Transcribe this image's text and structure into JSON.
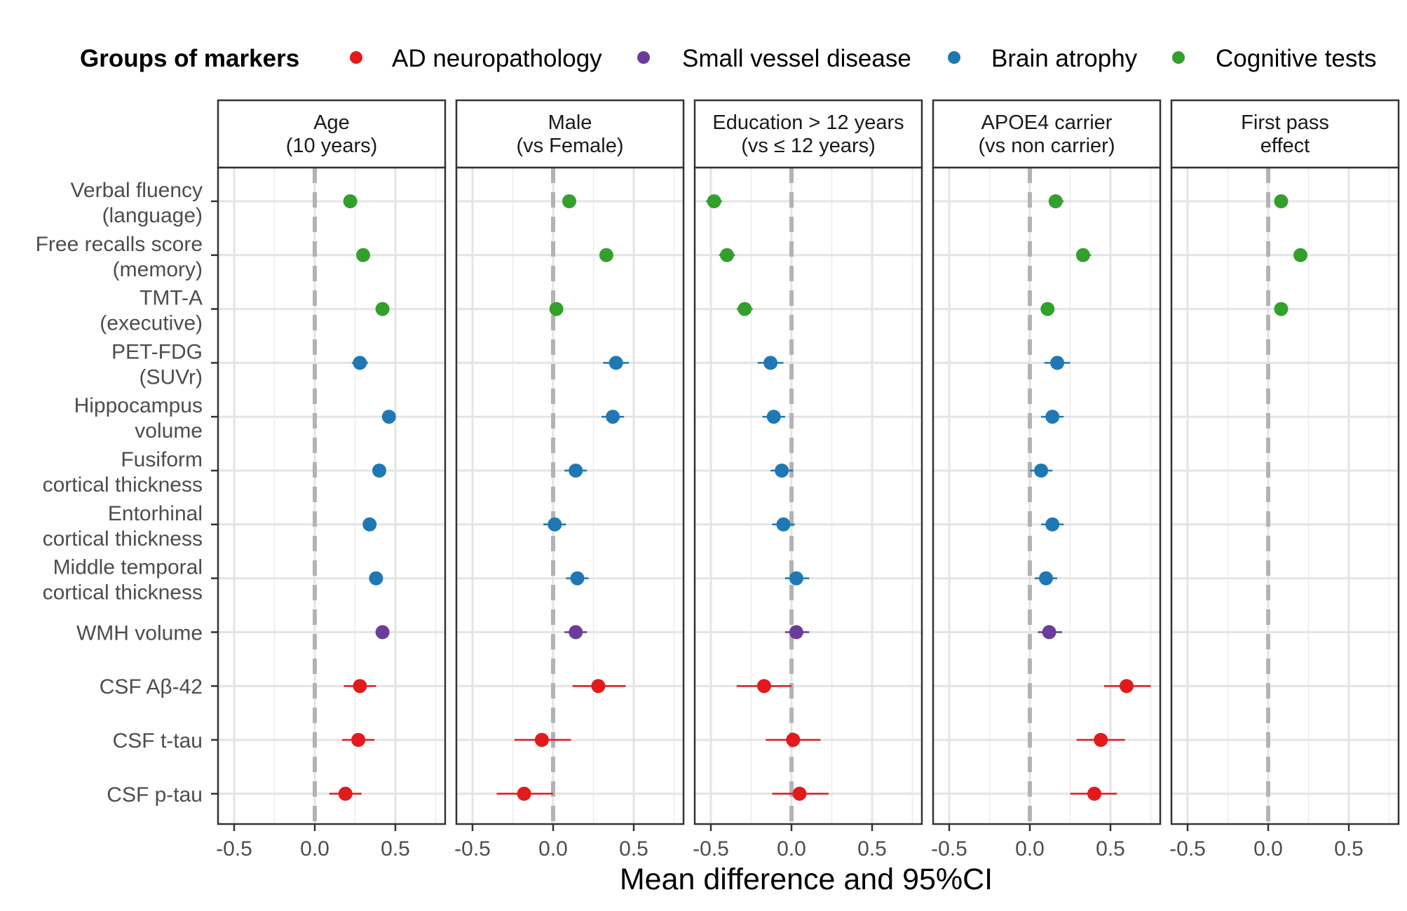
{
  "chart_data": {
    "type": "scatter",
    "subtype": "forest-plot-faceted",
    "legend": {
      "title": "Groups of markers",
      "placement": "top",
      "entries": [
        {
          "key": "ad",
          "label": "AD neuropathology",
          "color": "#E31A1C"
        },
        {
          "key": "svd",
          "label": "Small vessel disease",
          "color": "#6A3D9A"
        },
        {
          "key": "atrophy",
          "label": "Brain atrophy",
          "color": "#1F78B4"
        },
        {
          "key": "cog",
          "label": "Cognitive tests",
          "color": "#33A02C"
        }
      ]
    },
    "xlabel": "Mean difference and 95%CI",
    "xlim": [
      -0.6,
      0.8
    ],
    "xticks": [
      -0.5,
      0.0,
      0.5
    ],
    "xtick_labels": [
      "-0.5",
      "0.0",
      "0.5"
    ],
    "reference_line": 0,
    "markers": [
      {
        "lines": [
          "Verbal fluency",
          "(language)"
        ],
        "group": "cog"
      },
      {
        "lines": [
          "Free recalls score",
          "(memory)"
        ],
        "group": "cog"
      },
      {
        "lines": [
          "TMT-A",
          "(executive)"
        ],
        "group": "cog"
      },
      {
        "lines": [
          "PET-FDG",
          "(SUVr)"
        ],
        "group": "atrophy"
      },
      {
        "lines": [
          "Hippocampus",
          "volume"
        ],
        "group": "atrophy"
      },
      {
        "lines": [
          "Fusiform",
          "cortical thickness"
        ],
        "group": "atrophy"
      },
      {
        "lines": [
          "Entorhinal",
          "cortical thickness"
        ],
        "group": "atrophy"
      },
      {
        "lines": [
          "Middle temporal",
          "cortical thickness"
        ],
        "group": "atrophy"
      },
      {
        "lines": [
          "WMH volume"
        ],
        "group": "svd"
      },
      {
        "lines": [
          "CSF Aβ-42"
        ],
        "group": "ad"
      },
      {
        "lines": [
          "CSF t-tau"
        ],
        "group": "ad"
      },
      {
        "lines": [
          "CSF p-tau"
        ],
        "group": "ad"
      }
    ],
    "facets": [
      {
        "title": [
          "Age",
          "(10 years)"
        ],
        "estimates": [
          {
            "est": 0.22,
            "lo": 0.19,
            "hi": 0.25
          },
          {
            "est": 0.3,
            "lo": 0.27,
            "hi": 0.33
          },
          {
            "est": 0.42,
            "lo": 0.39,
            "hi": 0.45
          },
          {
            "est": 0.28,
            "lo": 0.23,
            "hi": 0.33
          },
          {
            "est": 0.46,
            "lo": 0.43,
            "hi": 0.49
          },
          {
            "est": 0.4,
            "lo": 0.37,
            "hi": 0.43
          },
          {
            "est": 0.34,
            "lo": 0.31,
            "hi": 0.37
          },
          {
            "est": 0.38,
            "lo": 0.35,
            "hi": 0.41
          },
          {
            "est": 0.42,
            "lo": 0.39,
            "hi": 0.45
          },
          {
            "est": 0.28,
            "lo": 0.18,
            "hi": 0.38
          },
          {
            "est": 0.27,
            "lo": 0.17,
            "hi": 0.37
          },
          {
            "est": 0.19,
            "lo": 0.09,
            "hi": 0.29
          }
        ]
      },
      {
        "title": [
          "Male",
          "(vs Female)"
        ],
        "estimates": [
          {
            "est": 0.1,
            "lo": 0.06,
            "hi": 0.14
          },
          {
            "est": 0.33,
            "lo": 0.29,
            "hi": 0.37
          },
          {
            "est": 0.02,
            "lo": -0.02,
            "hi": 0.06
          },
          {
            "est": 0.39,
            "lo": 0.31,
            "hi": 0.47
          },
          {
            "est": 0.37,
            "lo": 0.3,
            "hi": 0.44
          },
          {
            "est": 0.14,
            "lo": 0.07,
            "hi": 0.21
          },
          {
            "est": 0.01,
            "lo": -0.06,
            "hi": 0.08
          },
          {
            "est": 0.15,
            "lo": 0.08,
            "hi": 0.22
          },
          {
            "est": 0.14,
            "lo": 0.07,
            "hi": 0.21
          },
          {
            "est": 0.28,
            "lo": 0.12,
            "hi": 0.45
          },
          {
            "est": -0.07,
            "lo": -0.24,
            "hi": 0.11
          },
          {
            "est": -0.18,
            "lo": -0.35,
            "hi": 0.0
          }
        ]
      },
      {
        "title": [
          "Education > 12 years",
          "(vs ≤ 12 years)"
        ],
        "estimates": [
          {
            "est": -0.48,
            "lo": -0.53,
            "hi": -0.43
          },
          {
            "est": -0.4,
            "lo": -0.45,
            "hi": -0.35
          },
          {
            "est": -0.29,
            "lo": -0.34,
            "hi": -0.24
          },
          {
            "est": -0.13,
            "lo": -0.21,
            "hi": -0.05
          },
          {
            "est": -0.11,
            "lo": -0.18,
            "hi": -0.04
          },
          {
            "est": -0.06,
            "lo": -0.13,
            "hi": 0.01
          },
          {
            "est": -0.05,
            "lo": -0.12,
            "hi": 0.02
          },
          {
            "est": 0.03,
            "lo": -0.04,
            "hi": 0.11
          },
          {
            "est": 0.03,
            "lo": -0.04,
            "hi": 0.11
          },
          {
            "est": -0.17,
            "lo": -0.34,
            "hi": 0.0
          },
          {
            "est": 0.01,
            "lo": -0.16,
            "hi": 0.18
          },
          {
            "est": 0.05,
            "lo": -0.12,
            "hi": 0.23
          }
        ]
      },
      {
        "title": [
          "APOE4 carrier",
          "(vs non carrier)"
        ],
        "estimates": [
          {
            "est": 0.16,
            "lo": 0.12,
            "hi": 0.21
          },
          {
            "est": 0.33,
            "lo": 0.29,
            "hi": 0.38
          },
          {
            "est": 0.11,
            "lo": 0.07,
            "hi": 0.15
          },
          {
            "est": 0.17,
            "lo": 0.09,
            "hi": 0.25
          },
          {
            "est": 0.14,
            "lo": 0.07,
            "hi": 0.21
          },
          {
            "est": 0.07,
            "lo": 0.0,
            "hi": 0.14
          },
          {
            "est": 0.14,
            "lo": 0.07,
            "hi": 0.21
          },
          {
            "est": 0.1,
            "lo": 0.03,
            "hi": 0.17
          },
          {
            "est": 0.12,
            "lo": 0.05,
            "hi": 0.2
          },
          {
            "est": 0.6,
            "lo": 0.46,
            "hi": 0.75
          },
          {
            "est": 0.44,
            "lo": 0.29,
            "hi": 0.59
          },
          {
            "est": 0.4,
            "lo": 0.25,
            "hi": 0.54
          }
        ]
      },
      {
        "title": [
          "First pass",
          "effect"
        ],
        "estimates": [
          {
            "est": 0.08,
            "lo": 0.06,
            "hi": 0.1
          },
          {
            "est": 0.2,
            "lo": 0.18,
            "hi": 0.22
          },
          {
            "est": 0.08,
            "lo": 0.06,
            "hi": 0.1
          },
          null,
          null,
          null,
          null,
          null,
          null,
          null,
          null,
          null
        ]
      }
    ]
  }
}
